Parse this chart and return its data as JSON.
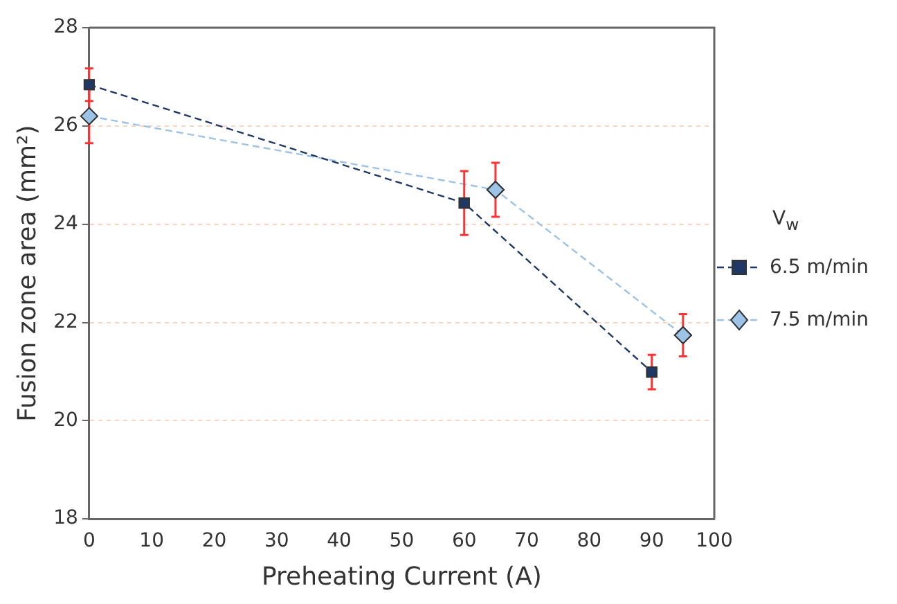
{
  "chart_data": {
    "type": "line",
    "xlabel": "Preheating Current (A)",
    "ylabel": "Fusion zone area (mm²)",
    "legend_title": "V$_{w}$",
    "legend": "right",
    "grid": "y",
    "line_style": "dashed",
    "xlim": [
      0,
      100
    ],
    "xticks": [
      0,
      10,
      20,
      30,
      40,
      50,
      60,
      70,
      80,
      90,
      100
    ],
    "ylim": [
      18,
      28
    ],
    "yticks": [
      18,
      20,
      22,
      24,
      26,
      28
    ],
    "series": [
      {
        "name": "6.5 m/min",
        "color": "#1f3864",
        "marker": "square",
        "x": [
          0,
          60,
          90
        ],
        "values": [
          26.84,
          24.43,
          20.99
        ],
        "errors": [
          0.33,
          0.65,
          0.35
        ]
      },
      {
        "name": "7.5 m/min",
        "color": "#9dc3e6",
        "marker": "diamond",
        "x": [
          0,
          65,
          95
        ],
        "values": [
          26.2,
          24.7,
          21.74
        ],
        "errors": [
          0.55,
          0.55,
          0.43
        ]
      }
    ]
  }
}
